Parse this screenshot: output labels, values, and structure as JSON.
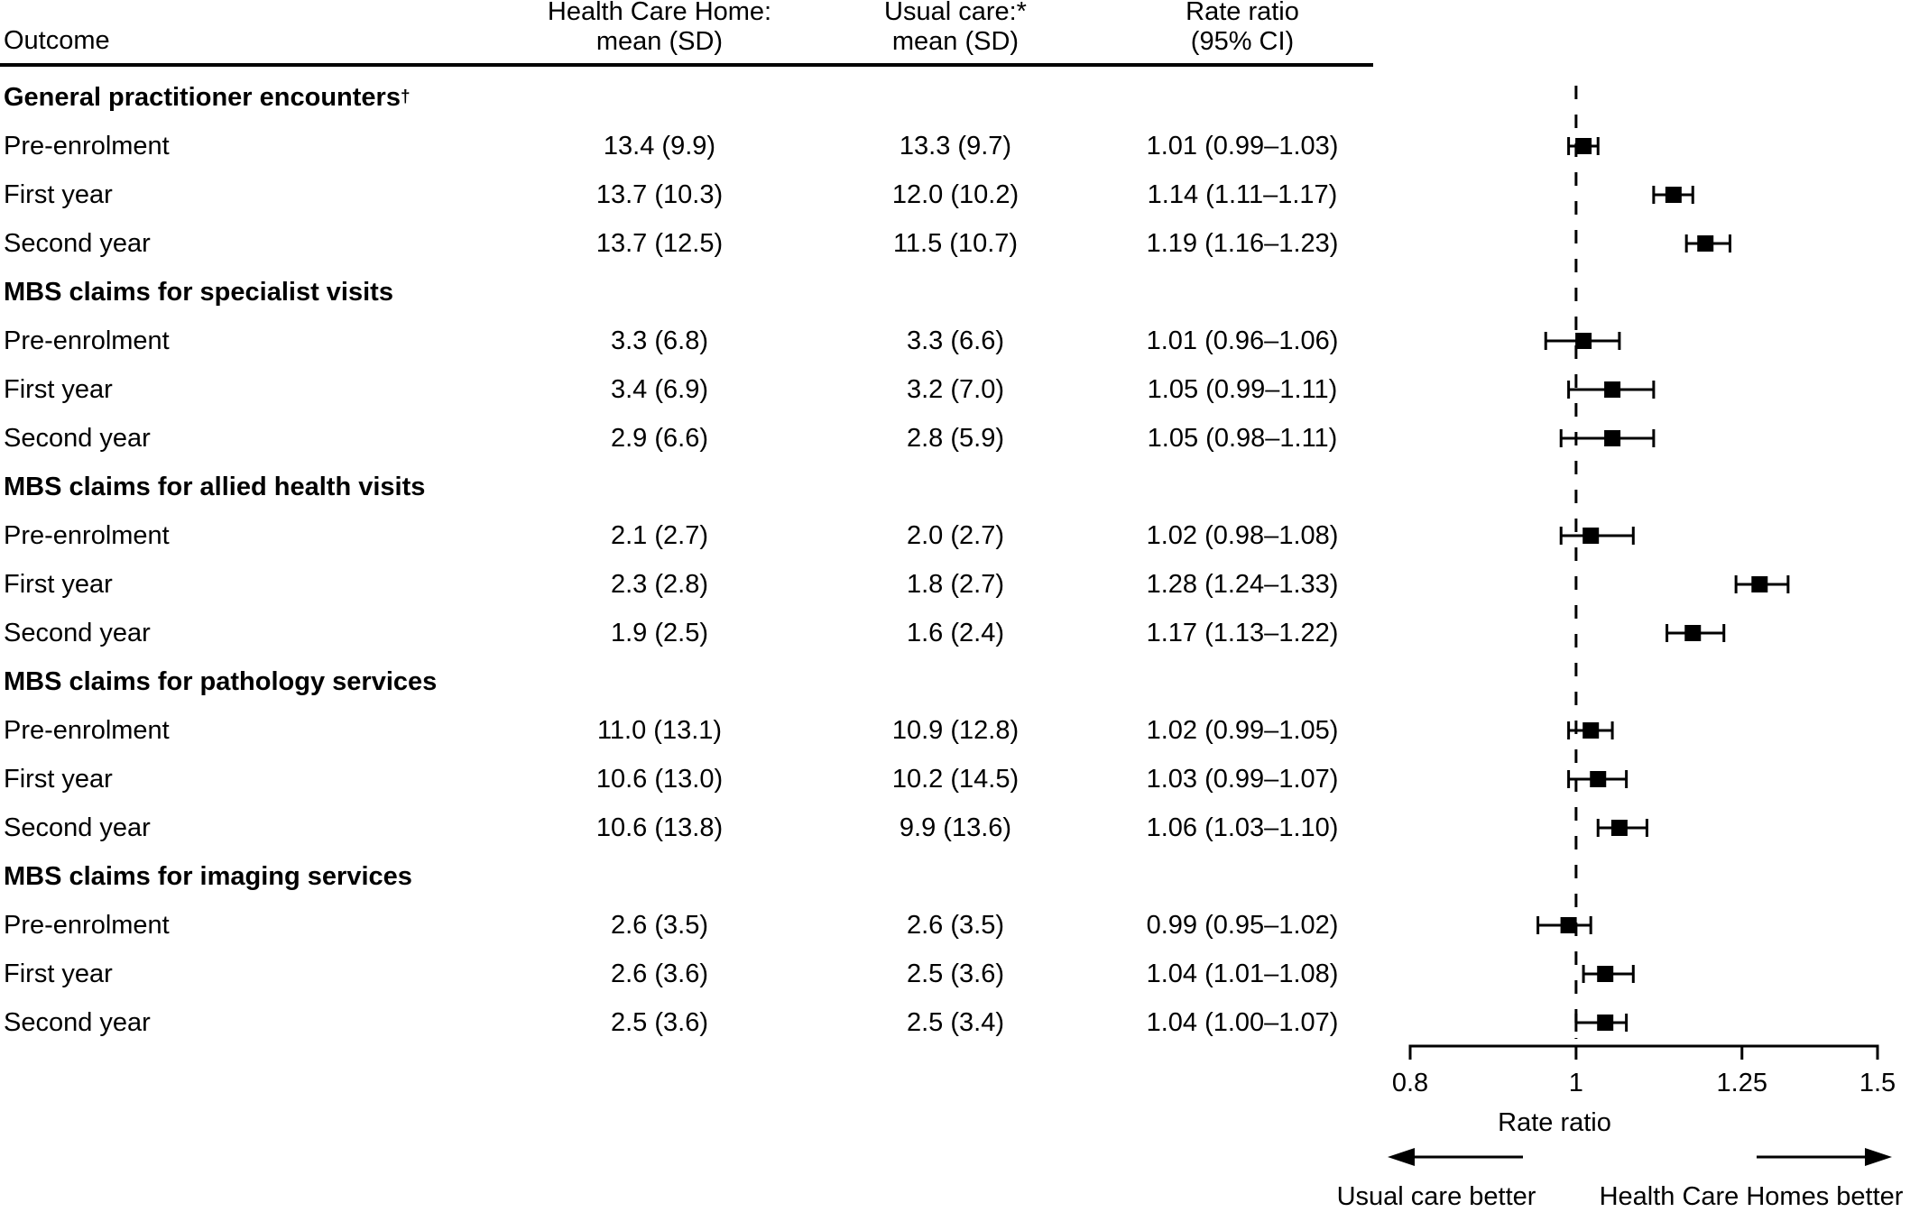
{
  "colors": {
    "ink": "#000000",
    "background": "#ffffff"
  },
  "table": {
    "header": {
      "outcome": "Outcome",
      "hch": [
        "Health Care Home:",
        "mean (SD)"
      ],
      "usual": [
        "Usual care:*",
        "mean (SD)"
      ],
      "rr": [
        "Rate ratio",
        "(95% CI)"
      ]
    },
    "groups": [
      {
        "label": "General practitioner encounters",
        "sup": "†",
        "rows": [
          {
            "label": "Pre-enrolment",
            "hch": "13.4 (9.9)",
            "usual": "13.3 (9.7)",
            "rr": "1.01 (0.99–1.03)"
          },
          {
            "label": "First year",
            "hch": "13.7 (10.3)",
            "usual": "12.0 (10.2)",
            "rr": "1.14 (1.11–1.17)"
          },
          {
            "label": "Second year",
            "hch": "13.7 (12.5)",
            "usual": "11.5 (10.7)",
            "rr": "1.19 (1.16–1.23)"
          }
        ]
      },
      {
        "label": "MBS claims for specialist visits",
        "sup": "",
        "rows": [
          {
            "label": "Pre-enrolment",
            "hch": "3.3 (6.8)",
            "usual": "3.3 (6.6)",
            "rr": "1.01 (0.96–1.06)"
          },
          {
            "label": "First year",
            "hch": "3.4 (6.9)",
            "usual": "3.2 (7.0)",
            "rr": "1.05 (0.99–1.11)"
          },
          {
            "label": "Second year",
            "hch": "2.9 (6.6)",
            "usual": "2.8 (5.9)",
            "rr": "1.05 (0.98–1.11)"
          }
        ]
      },
      {
        "label": "MBS claims for allied health visits",
        "sup": "",
        "rows": [
          {
            "label": "Pre-enrolment",
            "hch": "2.1 (2.7)",
            "usual": "2.0 (2.7)",
            "rr": "1.02 (0.98–1.08)"
          },
          {
            "label": "First year",
            "hch": "2.3 (2.8)",
            "usual": "1.8 (2.7)",
            "rr": "1.28 (1.24–1.33)"
          },
          {
            "label": "Second year",
            "hch": "1.9 (2.5)",
            "usual": "1.6 (2.4)",
            "rr": "1.17 (1.13–1.22)"
          }
        ]
      },
      {
        "label": "MBS claims for pathology services",
        "sup": "",
        "rows": [
          {
            "label": "Pre-enrolment",
            "hch": "11.0 (13.1)",
            "usual": "10.9 (12.8)",
            "rr": "1.02 (0.99–1.05)"
          },
          {
            "label": "First year",
            "hch": "10.6 (13.0)",
            "usual": "10.2 (14.5)",
            "rr": "1.03 (0.99–1.07)"
          },
          {
            "label": "Second year",
            "hch": "10.6 (13.8)",
            "usual": "9.9 (13.6)",
            "rr": "1.06 (1.03–1.10)"
          }
        ]
      },
      {
        "label": "MBS claims for imaging services",
        "sup": "",
        "rows": [
          {
            "label": "Pre-enrolment",
            "hch": "2.6 (3.5)",
            "usual": "2.6 (3.5)",
            "rr": "0.99 (0.95–1.02)"
          },
          {
            "label": "First year",
            "hch": "2.6 (3.6)",
            "usual": "2.5 (3.6)",
            "rr": "1.04 (1.01–1.08)"
          },
          {
            "label": "Second year",
            "hch": "2.5 (3.6)",
            "usual": "2.5 (3.4)",
            "rr": "1.04 (1.00–1.07)"
          }
        ]
      }
    ]
  },
  "chart_data": {
    "type": "scatter",
    "variant": "forest-plot",
    "x_scale": "log",
    "xlim": [
      0.8,
      1.5
    ],
    "x_ticks": [
      "0.8",
      "1",
      "1.25",
      "1.5"
    ],
    "x_tick_values": [
      0.8,
      1,
      1.25,
      1.5
    ],
    "reference_line": 1.0,
    "xlabel": "Rate ratio",
    "direction_labels": {
      "left": "Usual care better",
      "right": "Health Care Homes better"
    },
    "points": [
      {
        "group": "General practitioner encounters",
        "period": "Pre-enrolment",
        "estimate": 1.01,
        "ci_low": 0.99,
        "ci_high": 1.03
      },
      {
        "group": "General practitioner encounters",
        "period": "First year",
        "estimate": 1.14,
        "ci_low": 1.11,
        "ci_high": 1.17
      },
      {
        "group": "General practitioner encounters",
        "period": "Second year",
        "estimate": 1.19,
        "ci_low": 1.16,
        "ci_high": 1.23
      },
      {
        "group": "MBS claims for specialist visits",
        "period": "Pre-enrolment",
        "estimate": 1.01,
        "ci_low": 0.96,
        "ci_high": 1.06
      },
      {
        "group": "MBS claims for specialist visits",
        "period": "First year",
        "estimate": 1.05,
        "ci_low": 0.99,
        "ci_high": 1.11
      },
      {
        "group": "MBS claims for specialist visits",
        "period": "Second year",
        "estimate": 1.05,
        "ci_low": 0.98,
        "ci_high": 1.11
      },
      {
        "group": "MBS claims for allied health visits",
        "period": "Pre-enrolment",
        "estimate": 1.02,
        "ci_low": 0.98,
        "ci_high": 1.08
      },
      {
        "group": "MBS claims for allied health visits",
        "period": "First year",
        "estimate": 1.28,
        "ci_low": 1.24,
        "ci_high": 1.33
      },
      {
        "group": "MBS claims for allied health visits",
        "period": "Second year",
        "estimate": 1.17,
        "ci_low": 1.13,
        "ci_high": 1.22
      },
      {
        "group": "MBS claims for pathology services",
        "period": "Pre-enrolment",
        "estimate": 1.02,
        "ci_low": 0.99,
        "ci_high": 1.05
      },
      {
        "group": "MBS claims for pathology services",
        "period": "First year",
        "estimate": 1.03,
        "ci_low": 0.99,
        "ci_high": 1.07
      },
      {
        "group": "MBS claims for pathology services",
        "period": "Second year",
        "estimate": 1.06,
        "ci_low": 1.03,
        "ci_high": 1.1
      },
      {
        "group": "MBS claims for imaging services",
        "period": "Pre-enrolment",
        "estimate": 0.99,
        "ci_low": 0.95,
        "ci_high": 1.02
      },
      {
        "group": "MBS claims for imaging services",
        "period": "First year",
        "estimate": 1.04,
        "ci_low": 1.01,
        "ci_high": 1.08
      },
      {
        "group": "MBS claims for imaging services",
        "period": "Second year",
        "estimate": 1.04,
        "ci_low": 1.0,
        "ci_high": 1.07
      }
    ]
  }
}
